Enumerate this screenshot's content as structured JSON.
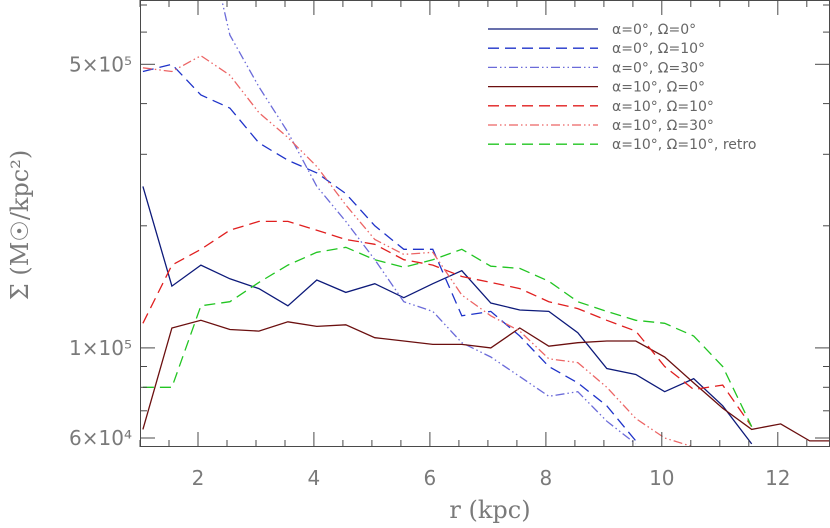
{
  "chart_data": {
    "type": "line",
    "title": "",
    "xlabel": "r (kpc)",
    "ylabel": "Σ (M☉/kpc²)",
    "xlim": [
      1.0,
      12.9
    ],
    "ylim": [
      57000,
      720000
    ],
    "yscale": "log",
    "x_ticks": [
      2,
      4,
      6,
      8,
      10,
      12
    ],
    "x_tick_labels": [
      "2",
      "4",
      "6",
      "8",
      "10",
      "12"
    ],
    "y_ticks": [
      60000,
      100000,
      500000
    ],
    "y_tick_labels": [
      "6×10⁴",
      "1×10⁵",
      "5×10⁵"
    ],
    "legend_position": "top-right",
    "x": [
      1.05,
      1.55,
      2.05,
      2.55,
      3.05,
      3.55,
      4.05,
      4.55,
      5.05,
      5.55,
      6.05,
      6.55,
      7.05,
      7.55,
      8.05,
      8.55,
      9.05,
      9.55,
      10.05,
      10.55,
      11.05,
      11.55,
      12.05,
      12.55,
      12.9
    ],
    "series": [
      {
        "name": "α=0°, Ω=0°",
        "color": "#0d1a7a",
        "dash": "solid",
        "values": [
          250000,
          142000,
          160000,
          148000,
          140000,
          127000,
          147000,
          137000,
          144000,
          133000,
          144000,
          155000,
          129000,
          124000,
          123000,
          109000,
          89000,
          86000,
          78000,
          84000,
          72000,
          58000,
          null,
          null,
          null
        ]
      },
      {
        "name": "α=0°, Ω=10°",
        "color": "#1f33c9",
        "dash": "dashed",
        "values": [
          480000,
          500000,
          420000,
          390000,
          320000,
          290000,
          270000,
          240000,
          200000,
          175000,
          175000,
          120000,
          123000,
          107000,
          90000,
          82000,
          72000,
          59000,
          null,
          null,
          null,
          null,
          null,
          null,
          null
        ]
      },
      {
        "name": "α=0°, Ω=30°",
        "color": "#6b6bd9",
        "dash": "dashdotdot",
        "values": [
          null,
          null,
          1200000,
          590000,
          440000,
          340000,
          250000,
          205000,
          165000,
          130000,
          123000,
          103000,
          95000,
          85000,
          76000,
          78000,
          66000,
          58000,
          null,
          null,
          null,
          null,
          null,
          null,
          null
        ]
      },
      {
        "name": "α=10°, Ω=0°",
        "color": "#6b0f0f",
        "dash": "solid",
        "values": [
          63000,
          112000,
          117000,
          111000,
          110000,
          116000,
          113000,
          114000,
          106000,
          104000,
          102000,
          102000,
          100000,
          112000,
          101000,
          103000,
          104000,
          104000,
          95000,
          82000,
          71000,
          63000,
          65000,
          59000,
          59000
        ]
      },
      {
        "name": "α=10°, Ω=10°",
        "color": "#e01f1f",
        "dash": "dashed",
        "values": [
          115000,
          160000,
          175000,
          195000,
          205000,
          205000,
          195000,
          185000,
          180000,
          165000,
          160000,
          150000,
          145000,
          140000,
          130000,
          125000,
          117000,
          110000,
          90000,
          79000,
          81000,
          64000,
          null,
          null,
          null
        ]
      },
      {
        "name": "α=10°, Ω=30°",
        "color": "#ec6565",
        "dash": "dashdotdot",
        "values": [
          490000,
          480000,
          525000,
          470000,
          380000,
          330000,
          280000,
          225000,
          185000,
          170000,
          172000,
          135000,
          120000,
          110000,
          94000,
          92000,
          80000,
          67000,
          60000,
          57000,
          null,
          null,
          null,
          null,
          null
        ]
      },
      {
        "name": "α=10°, Ω=10°, retro",
        "color": "#22c522",
        "dash": "dashed",
        "values": [
          80000,
          80000,
          127000,
          130000,
          145000,
          160000,
          172000,
          177000,
          165000,
          158000,
          165000,
          175000,
          159000,
          157000,
          146000,
          130000,
          123000,
          117000,
          115000,
          107000,
          90000,
          64000,
          null,
          null,
          null
        ]
      }
    ]
  }
}
